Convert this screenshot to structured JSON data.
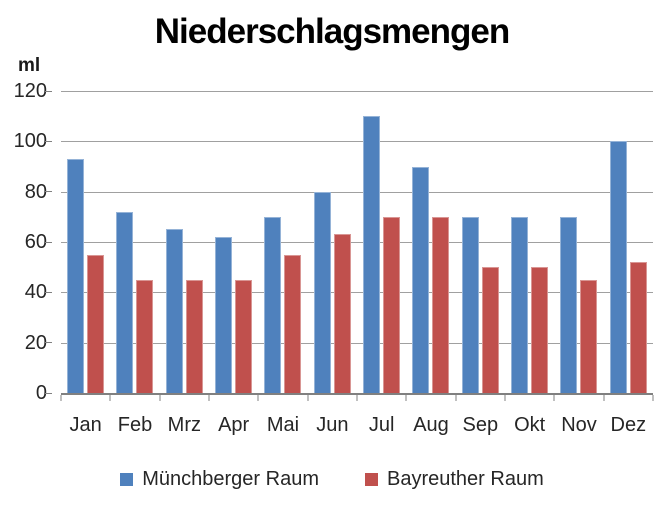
{
  "chart_data": {
    "type": "bar",
    "title": "Niederschlagsmengen",
    "ylabel": "ml",
    "xlabel": "",
    "categories": [
      "Jan",
      "Feb",
      "Mrz",
      "Apr",
      "Mai",
      "Jun",
      "Jul",
      "Aug",
      "Sep",
      "Okt",
      "Nov",
      "Dez"
    ],
    "series": [
      {
        "name": "Münchberger Raum",
        "key": "muenchberger-raum",
        "color": "#4F81BD",
        "border_color": "#95B3D7",
        "values": [
          93,
          72,
          65,
          62,
          70,
          80,
          110,
          90,
          70,
          70,
          70,
          100
        ]
      },
      {
        "name": "Bayreuther Raum",
        "key": "bayreuther-raum",
        "color": "#C0504D",
        "border_color": "#D99694",
        "values": [
          55,
          45,
          45,
          45,
          55,
          63,
          70,
          70,
          50,
          50,
          45,
          52
        ]
      }
    ],
    "ylim": [
      0,
      120
    ],
    "ytick_step": 20,
    "ytick_labels": [
      "0",
      "20",
      "40",
      "60",
      "80",
      "100",
      "120"
    ],
    "grid": true,
    "grid_color": "#a0a0a0",
    "axis_color": "#808080",
    "legend_position": "bottom",
    "background_color": "#ffffff"
  }
}
